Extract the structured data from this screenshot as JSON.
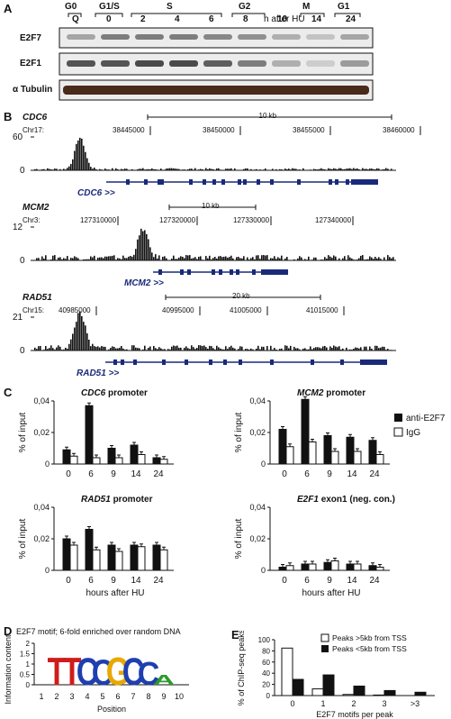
{
  "panel_letters": {
    "a": "A",
    "b": "B",
    "c": "C",
    "d": "D",
    "e": "E"
  },
  "panelA": {
    "phases": [
      "G0",
      "G1/S",
      "S",
      "G2",
      "M",
      "G1"
    ],
    "lanes": [
      "Q",
      "0",
      "2",
      "4",
      "6",
      "8",
      "10",
      "14",
      "24"
    ],
    "lane_suffix": "h after HU",
    "blots": [
      "E2F7",
      "E2F1",
      "α Tubulin"
    ]
  },
  "panelB": {
    "tracks": [
      {
        "gene": "CDC6",
        "chr": "Chr17:",
        "ymax": "60",
        "ymin": "0",
        "scale": "10 kb",
        "coords": [
          "38445000",
          "38450000",
          "38455000",
          "38460000"
        ],
        "label": "CDC6 >>"
      },
      {
        "gene": "MCM2",
        "chr": "Chr3:",
        "ymax": "12",
        "ymin": "0",
        "scale": "10 kb",
        "coords": [
          "127310000",
          "127320000",
          "127330000",
          "127340000"
        ],
        "label": "MCM2 >>"
      },
      {
        "gene": "RAD51",
        "chr": "Chr15:",
        "ymax": "21",
        "ymin": "0",
        "scale": "20 kb",
        "coords": [
          "40985000",
          "40995000",
          "41005000",
          "41015000"
        ],
        "label": "RAD51 >>"
      }
    ]
  },
  "chart_data": [
    {
      "type": "bar",
      "title": "CDC6 promoter",
      "ylabel": "% of input",
      "ylim": [
        0,
        0.04
      ],
      "yticks": [
        "0",
        "0,02",
        "0,04"
      ],
      "categories": [
        "0",
        "6",
        "9",
        "14",
        "24"
      ],
      "series": [
        {
          "name": "anti-E2F7",
          "values": [
            0.009,
            0.037,
            0.01,
            0.012,
            0.004
          ]
        },
        {
          "name": "IgG",
          "values": [
            0.005,
            0.004,
            0.004,
            0.006,
            0.003
          ]
        }
      ]
    },
    {
      "type": "bar",
      "title": "MCM2 promoter",
      "ylabel": "% of input",
      "ylim": [
        0,
        0.04
      ],
      "yticks": [
        "0",
        "0,02",
        "0,04"
      ],
      "categories": [
        "0",
        "6",
        "9",
        "14",
        "24"
      ],
      "series": [
        {
          "name": "anti-E2F7",
          "values": [
            0.022,
            0.041,
            0.018,
            0.017,
            0.015
          ]
        },
        {
          "name": "IgG",
          "values": [
            0.011,
            0.014,
            0.008,
            0.008,
            0.006
          ]
        }
      ]
    },
    {
      "type": "bar",
      "title": "RAD51 promoter",
      "ylabel": "% of input",
      "ylim": [
        0,
        0.04
      ],
      "yticks": [
        "0",
        "0,02",
        "0,04"
      ],
      "categories": [
        "0",
        "6",
        "9",
        "14",
        "24"
      ],
      "xlabel": "hours after HU",
      "series": [
        {
          "name": "anti-E2F7",
          "values": [
            0.02,
            0.026,
            0.016,
            0.016,
            0.016
          ]
        },
        {
          "name": "IgG",
          "values": [
            0.016,
            0.013,
            0.012,
            0.015,
            0.013
          ]
        }
      ]
    },
    {
      "type": "bar",
      "title": "E2F1 exon1 (neg. con.)",
      "ylabel": "% of input",
      "ylim": [
        0,
        0.04
      ],
      "yticks": [
        "0",
        "0,02",
        "0,04"
      ],
      "categories": [
        "0",
        "6",
        "9",
        "14",
        "24"
      ],
      "xlabel": "hours after HU",
      "series": [
        {
          "name": "anti-E2F7",
          "values": [
            0.002,
            0.004,
            0.005,
            0.004,
            0.003
          ]
        },
        {
          "name": "IgG",
          "values": [
            0.003,
            0.004,
            0.006,
            0.004,
            0.002
          ]
        }
      ]
    },
    {
      "type": "bar",
      "title": "",
      "ylabel": "% of ChIP-seq peaks",
      "xlabel": "E2F7 motifs per peak",
      "ylim": [
        0,
        100
      ],
      "yticks": [
        "0",
        "20",
        "40",
        "60",
        "80",
        "100"
      ],
      "categories": [
        "0",
        "1",
        "2",
        "3",
        ">3"
      ],
      "series": [
        {
          "name": "Peaks >5kb from TSS",
          "values": [
            85,
            12,
            2,
            1,
            0
          ]
        },
        {
          "name": "Peaks <5kb from TSS",
          "values": [
            29,
            37,
            17,
            9,
            6
          ]
        }
      ]
    }
  ],
  "panelC_legend": [
    "anti-E2F7",
    "IgG"
  ],
  "panelD": {
    "title": "E2F7 motif; 6-fold enriched over random DNA",
    "ylabel": "Information content",
    "xlabel": "Position",
    "yticks": [
      "0",
      "0.5",
      "1",
      "1.5",
      "2"
    ],
    "positions": [
      "1",
      "2",
      "3",
      "4",
      "5",
      "6",
      "7",
      "8",
      "9",
      "10"
    ],
    "letters": [
      "T",
      "T",
      "C",
      "C",
      "G",
      "C",
      "C",
      "A"
    ]
  },
  "colors": {
    "black": "#111111",
    "white": "#ffffff",
    "navy": "#1a2a7a",
    "logo_T": "#d01c1c",
    "logo_C": "#1f3fb0",
    "logo_G": "#e8a800",
    "logo_A": "#2b9b2b"
  }
}
